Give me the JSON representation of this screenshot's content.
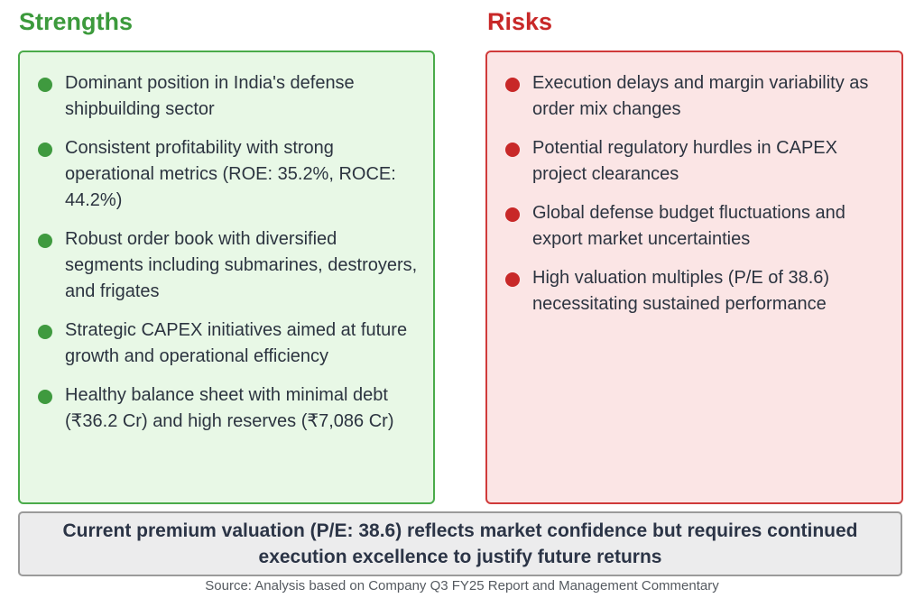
{
  "strengths": {
    "title": "Strengths",
    "items": [
      "Dominant position in India's defense shipbuilding sector",
      "Consistent profitability with strong operational metrics (ROE: 35.2%, ROCE: 44.2%)",
      "Robust order book with diversified segments including submarines, destroyers, and frigates",
      "Strategic CAPEX initiatives aimed at future growth and operational efficiency",
      "Healthy balance sheet with minimal debt (₹36.2 Cr) and high reserves (₹7,086 Cr)"
    ]
  },
  "risks": {
    "title": "Risks",
    "items": [
      "Execution delays and margin variability as order mix changes",
      "Potential regulatory hurdles in CAPEX project clearances",
      "Global defense budget fluctuations and export market uncertainties",
      "High valuation multiples (P/E of 38.6) necessitating sustained performance"
    ]
  },
  "summary": "Current premium valuation (P/E: 38.6) reflects market confidence but requires continued execution excellence to justify future returns",
  "source": "Source: Analysis based on Company Q3 FY25 Report and Management Commentary",
  "colors": {
    "strength_accent": "#3c9a3c",
    "strength_bg": "#e8f8e6",
    "risk_accent": "#c82828",
    "risk_bg": "#fbe5e5"
  }
}
